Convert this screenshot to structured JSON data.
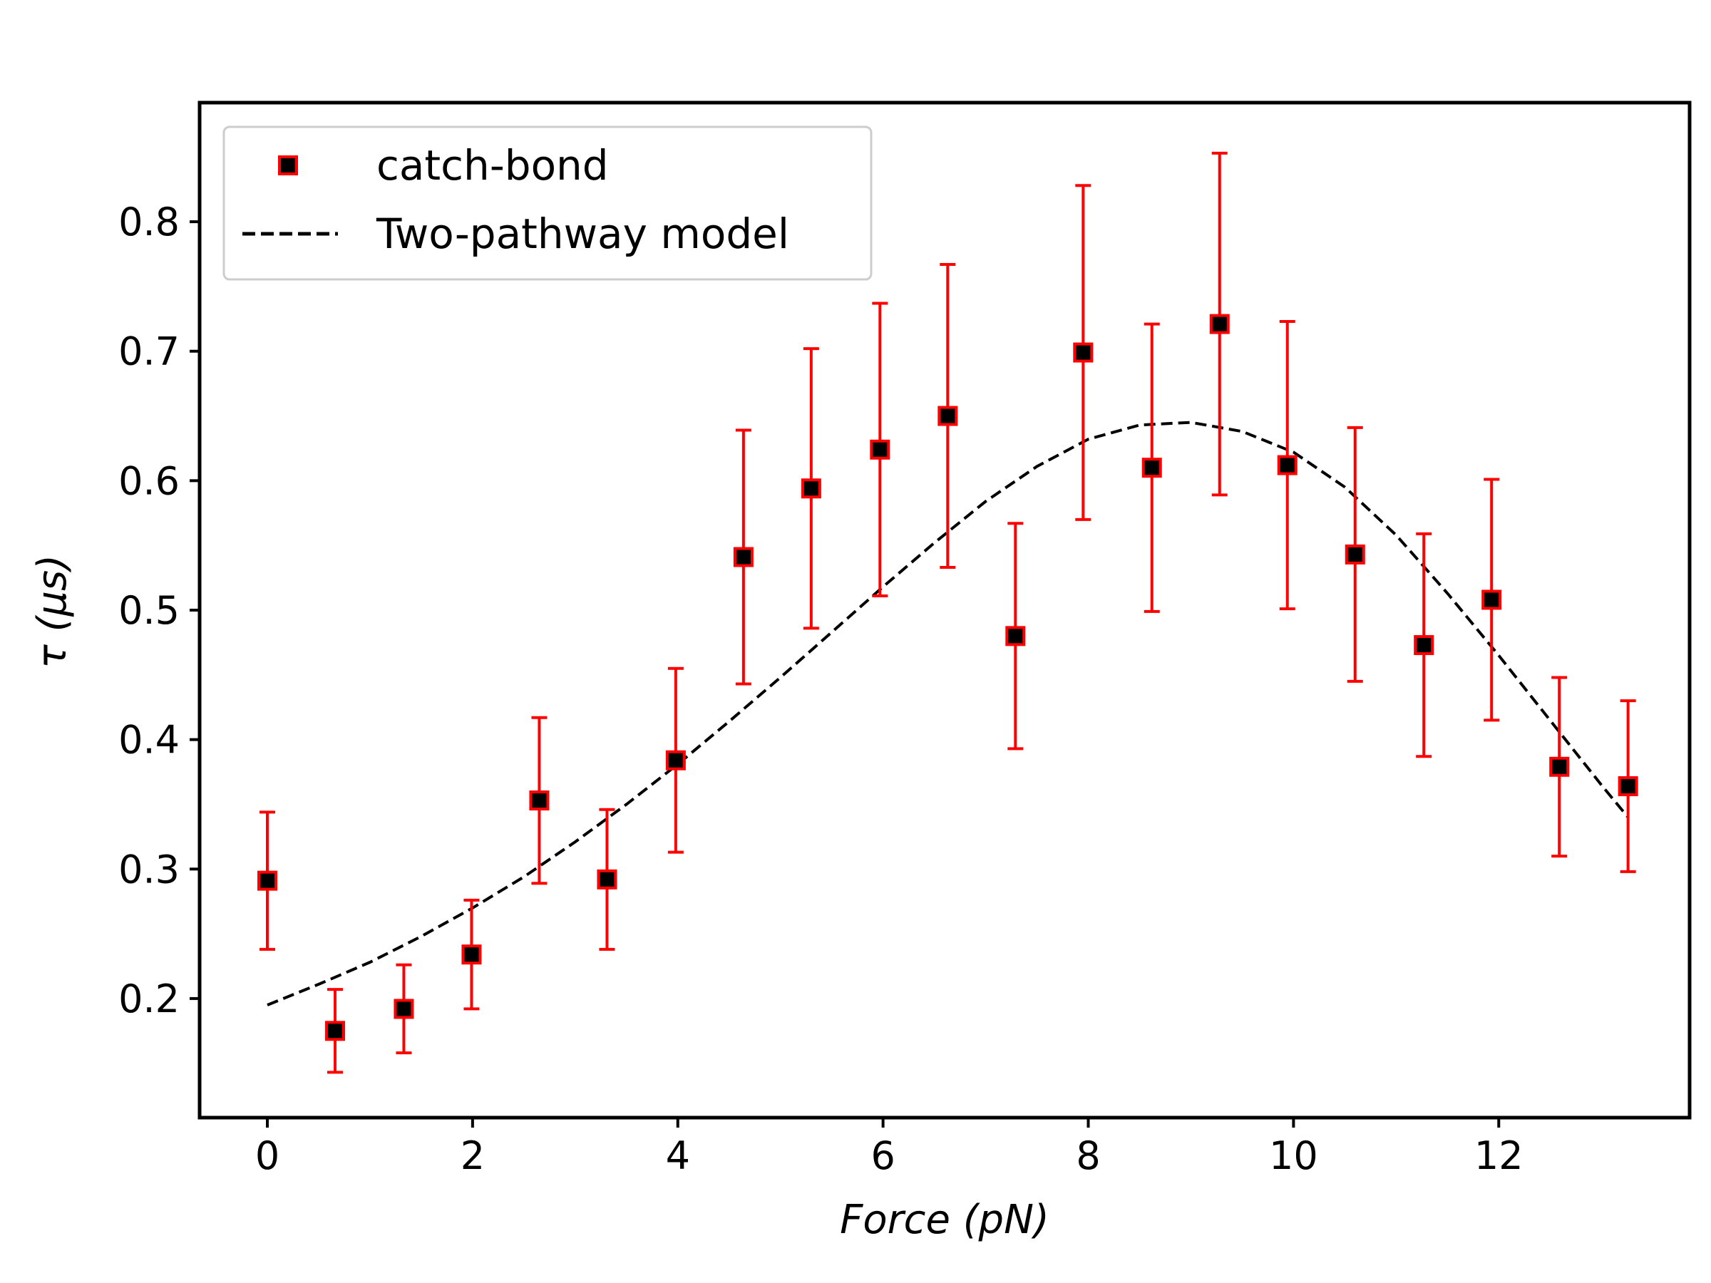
{
  "chart_data": {
    "type": "scatter",
    "title": "",
    "xlabel": "Force (pN)",
    "ylabel": "τ (μs)",
    "xlim": [
      -0.66,
      13.86
    ],
    "ylim": [
      0.108,
      0.892
    ],
    "xticks": [
      0,
      2,
      4,
      6,
      8,
      10,
      12
    ],
    "yticks": [
      0.2,
      0.3,
      0.4,
      0.5,
      0.6,
      0.7,
      0.8
    ],
    "xtick_labels": [
      "0",
      "2",
      "4",
      "6",
      "8",
      "10",
      "12"
    ],
    "ytick_labels": [
      "0.2",
      "0.3",
      "0.4",
      "0.5",
      "0.6",
      "0.7",
      "0.8"
    ],
    "grid": false,
    "legend": {
      "position": "top-left",
      "entries": [
        "catch-bond",
        "Two-pathway model"
      ]
    },
    "series": [
      {
        "name": "catch-bond",
        "kind": "errorbar",
        "marker": "square",
        "marker_color": "#000000",
        "edge_color": "#ff0000",
        "errorbar_color": "#ff0000",
        "x": [
          0,
          0.66,
          1.33,
          1.99,
          2.65,
          3.31,
          3.98,
          4.64,
          5.3,
          5.97,
          6.63,
          7.29,
          7.95,
          8.62,
          9.28,
          9.94,
          10.6,
          11.27,
          11.93,
          12.59,
          13.26
        ],
        "y": [
          0.291,
          0.175,
          0.192,
          0.234,
          0.353,
          0.292,
          0.384,
          0.541,
          0.594,
          0.624,
          0.65,
          0.48,
          0.699,
          0.61,
          0.721,
          0.612,
          0.543,
          0.473,
          0.508,
          0.379,
          0.364
        ],
        "yerr_low": [
          0.053,
          0.032,
          0.034,
          0.042,
          0.064,
          0.054,
          0.071,
          0.098,
          0.108,
          0.113,
          0.117,
          0.087,
          0.129,
          0.111,
          0.132,
          0.111,
          0.098,
          0.086,
          0.093,
          0.069,
          0.066
        ],
        "yerr_high": [
          0.053,
          0.032,
          0.034,
          0.042,
          0.064,
          0.054,
          0.071,
          0.098,
          0.108,
          0.113,
          0.117,
          0.087,
          0.129,
          0.111,
          0.132,
          0.111,
          0.098,
          0.086,
          0.093,
          0.069,
          0.066
        ]
      },
      {
        "name": "Two-pathway model",
        "kind": "line",
        "style": "dashed",
        "color": "#000000",
        "x": [
          0,
          0.5,
          1,
          1.5,
          2,
          2.5,
          3,
          3.5,
          4,
          4.5,
          5,
          5.5,
          6,
          6.5,
          7,
          7.5,
          8,
          8.5,
          9,
          9.5,
          10,
          10.5,
          11,
          11.5,
          12,
          12.5,
          13,
          13.26
        ],
        "y": [
          0.195,
          0.211,
          0.228,
          0.248,
          0.27,
          0.294,
          0.321,
          0.35,
          0.381,
          0.414,
          0.448,
          0.483,
          0.518,
          0.552,
          0.584,
          0.611,
          0.632,
          0.643,
          0.645,
          0.638,
          0.622,
          0.595,
          0.558,
          0.513,
          0.465,
          0.415,
          0.365,
          0.34
        ]
      }
    ]
  }
}
